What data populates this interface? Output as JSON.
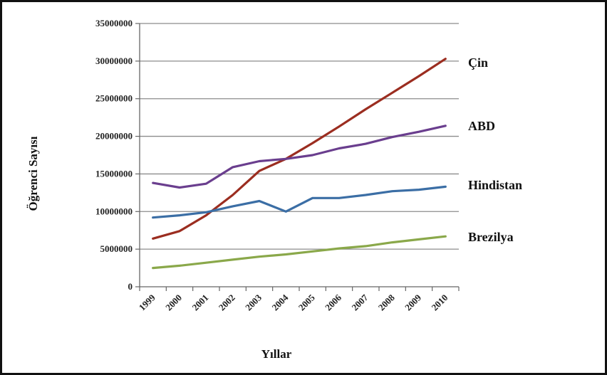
{
  "chart_data": {
    "type": "line",
    "title": "",
    "xlabel": "Yıllar",
    "ylabel": "Öğrenci Sayısı",
    "x": [
      "1999",
      "2000",
      "2001",
      "2002",
      "2003",
      "2004",
      "2005",
      "2006",
      "2007",
      "2008",
      "2009",
      "2010"
    ],
    "ylim": [
      0,
      35000000
    ],
    "yticks": [
      "0",
      "5000000",
      "10000000",
      "15000000",
      "20000000",
      "25000000",
      "30000000",
      "35000000"
    ],
    "grid": true,
    "legend": "inline-right",
    "series": [
      {
        "name": "Çin",
        "color": "#9b2d20",
        "values": [
          6400000,
          7400000,
          9500000,
          12200000,
          15400000,
          17000000,
          19100000,
          21300000,
          23600000,
          25800000,
          28000000,
          30300000
        ]
      },
      {
        "name": "ABD",
        "color": "#6a3e8e",
        "values": [
          13800000,
          13200000,
          13700000,
          15900000,
          16700000,
          17000000,
          17500000,
          18400000,
          19000000,
          19900000,
          20600000,
          21400000
        ]
      },
      {
        "name": "Hindistan",
        "color": "#3b6ea5",
        "values": [
          9200000,
          9500000,
          9900000,
          10700000,
          11400000,
          10000000,
          11800000,
          11800000,
          12200000,
          12700000,
          12900000,
          13300000
        ]
      },
      {
        "name": "Brezilya",
        "color": "#8aa84a",
        "values": [
          2500000,
          2800000,
          3200000,
          3600000,
          4000000,
          4300000,
          4700000,
          5100000,
          5400000,
          5900000,
          6300000,
          6700000
        ]
      }
    ]
  }
}
